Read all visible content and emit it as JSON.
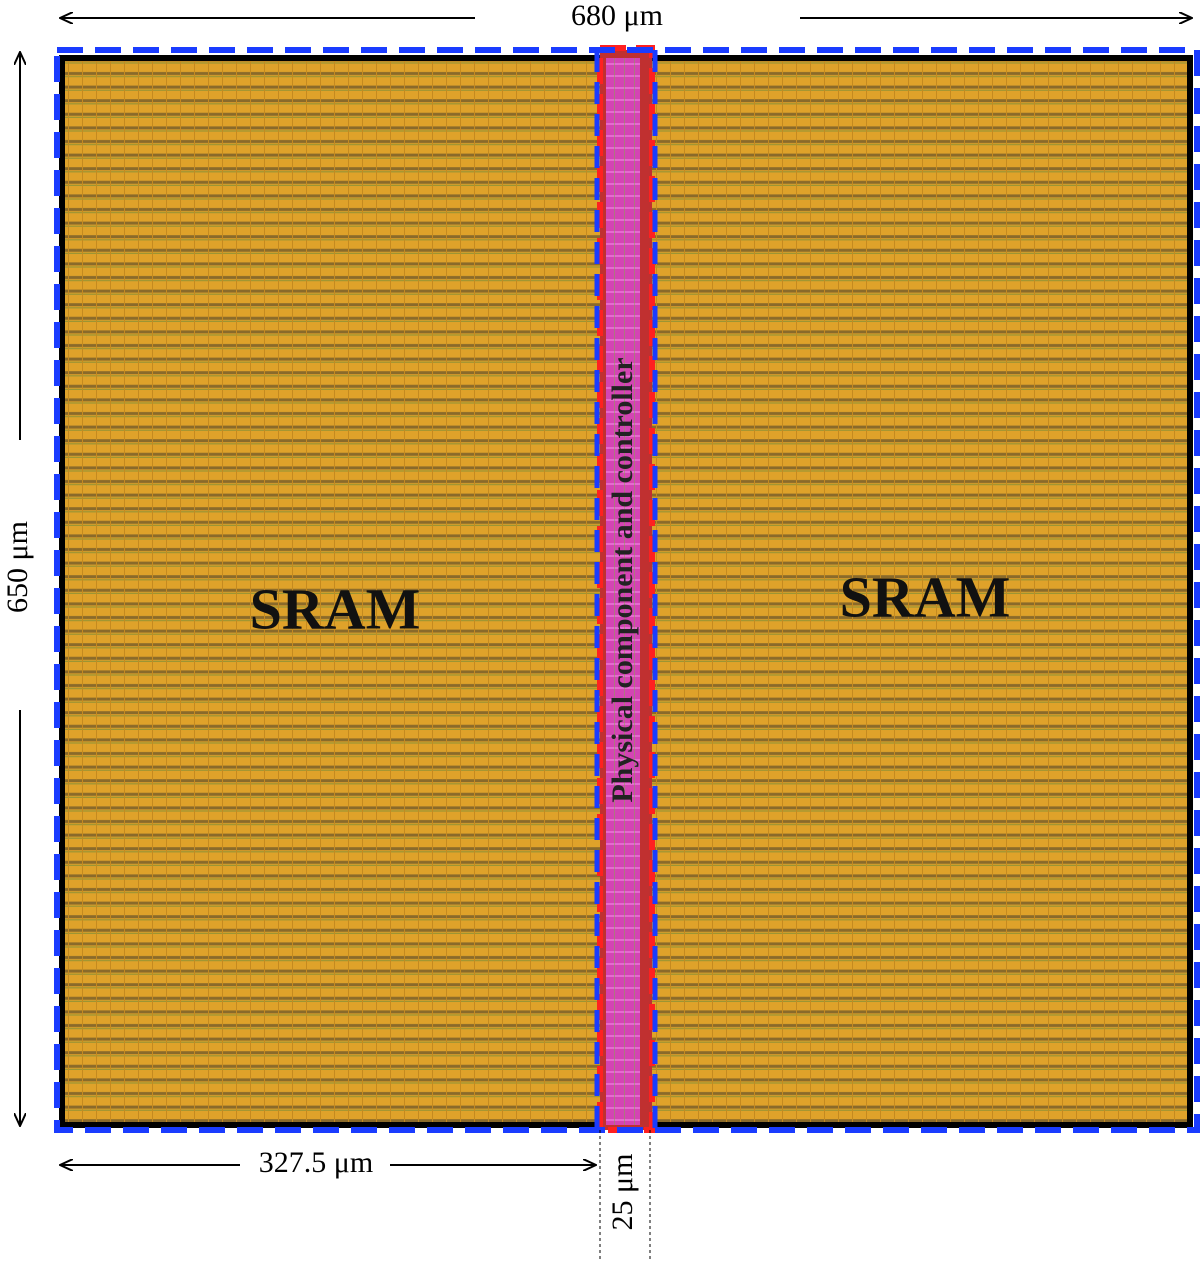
{
  "dimensions": {
    "width": "680 μm",
    "height": "650 μm",
    "sram_width": "327.5 μm",
    "strip_width": "25 μm"
  },
  "blocks": [
    {
      "label": "SRAM"
    },
    {
      "label": "Physical component and controller"
    },
    {
      "label": "SRAM"
    }
  ]
}
